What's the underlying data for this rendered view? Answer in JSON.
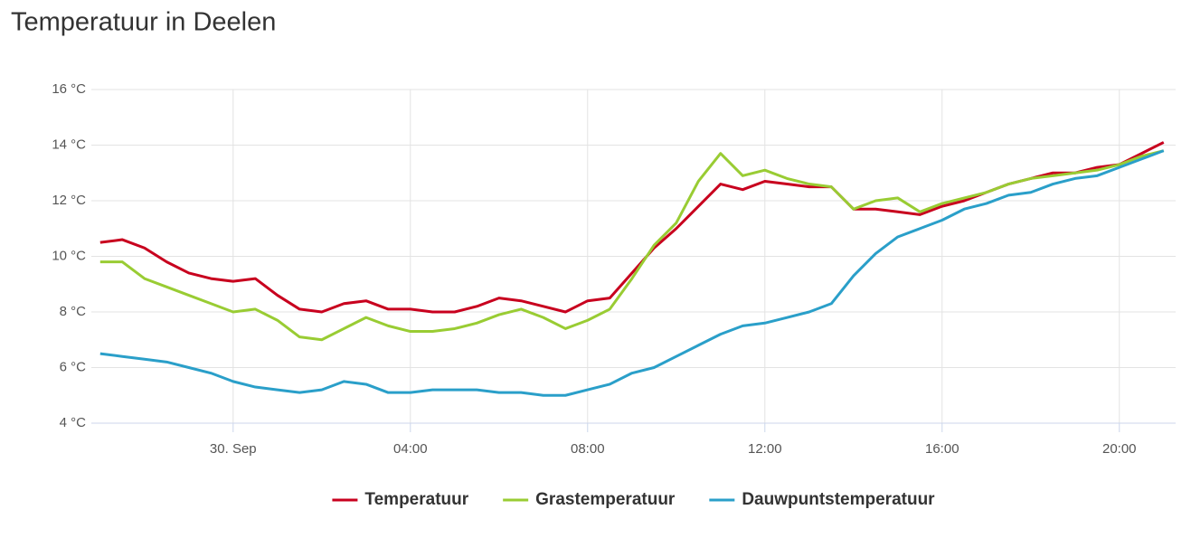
{
  "chart_data": {
    "type": "line",
    "title": "Temperatuur in Deelen",
    "x": [
      -3,
      -2.5,
      -2,
      -1.5,
      -1,
      -0.5,
      0,
      0.5,
      1,
      1.5,
      2,
      2.5,
      3,
      3.5,
      4,
      4.5,
      5,
      5.5,
      6,
      6.5,
      7,
      7.5,
      8,
      8.5,
      9,
      9.5,
      10,
      10.5,
      11,
      11.5,
      12,
      12.5,
      13,
      13.5,
      14,
      14.5,
      15,
      15.5,
      16,
      16.5,
      17,
      17.5,
      18,
      18.5,
      19,
      19.5,
      20,
      20.5,
      21
    ],
    "series": [
      {
        "name": "Temperatuur",
        "color": "#c8001e",
        "values": [
          10.5,
          10.6,
          10.3,
          9.8,
          9.4,
          9.2,
          9.1,
          9.2,
          8.6,
          8.1,
          8.0,
          8.3,
          8.4,
          8.1,
          8.1,
          8.0,
          8.0,
          8.2,
          8.5,
          8.4,
          8.2,
          8.0,
          8.4,
          8.5,
          9.4,
          10.3,
          11.0,
          11.8,
          12.6,
          12.4,
          12.7,
          12.6,
          12.5,
          12.5,
          11.7,
          11.7,
          11.6,
          11.5,
          11.8,
          12.0,
          12.3,
          12.6,
          12.8,
          13.0,
          13.0,
          13.2,
          13.3,
          13.7,
          14.1
        ]
      },
      {
        "name": "Grastemperatuur",
        "color": "#99cc33",
        "values": [
          9.8,
          9.8,
          9.2,
          8.9,
          8.6,
          8.3,
          8.0,
          8.1,
          7.7,
          7.1,
          7.0,
          7.4,
          7.8,
          7.5,
          7.3,
          7.3,
          7.4,
          7.6,
          7.9,
          8.1,
          7.8,
          7.4,
          7.7,
          8.1,
          9.2,
          10.4,
          11.2,
          12.7,
          13.7,
          12.9,
          13.1,
          12.8,
          12.6,
          12.5,
          11.7,
          12.0,
          12.1,
          11.6,
          11.9,
          12.1,
          12.3,
          12.6,
          12.8,
          12.9,
          13.0,
          13.1,
          13.3,
          13.6,
          13.8
        ]
      },
      {
        "name": "Dauwpuntstemperatuur",
        "color": "#2a9fc9",
        "values": [
          6.5,
          6.4,
          6.3,
          6.2,
          6.0,
          5.8,
          5.5,
          5.3,
          5.2,
          5.1,
          5.2,
          5.5,
          5.4,
          5.1,
          5.1,
          5.2,
          5.2,
          5.2,
          5.1,
          5.1,
          5.0,
          5.0,
          5.2,
          5.4,
          5.8,
          6.0,
          6.4,
          6.8,
          7.2,
          7.5,
          7.6,
          7.8,
          8.0,
          8.3,
          9.3,
          10.1,
          10.7,
          11.0,
          11.3,
          11.7,
          11.9,
          12.2,
          12.3,
          12.6,
          12.8,
          12.9,
          13.2,
          13.5,
          13.8
        ]
      }
    ],
    "xlim": [
      -3.2,
      21.27
    ],
    "xticks": [
      {
        "value": 0,
        "label": "30. Sep"
      },
      {
        "value": 4,
        "label": "04:00"
      },
      {
        "value": 8,
        "label": "08:00"
      },
      {
        "value": 12,
        "label": "12:00"
      },
      {
        "value": 16,
        "label": "16:00"
      },
      {
        "value": 20,
        "label": "20:00"
      }
    ],
    "ylim": [
      4,
      16
    ],
    "yticks": [
      {
        "value": 4,
        "label": "4 °C"
      },
      {
        "value": 6,
        "label": "6 °C"
      },
      {
        "value": 8,
        "label": "8 °C"
      },
      {
        "value": 10,
        "label": "10 °C"
      },
      {
        "value": 12,
        "label": "12 °C"
      },
      {
        "value": 14,
        "label": "14 °C"
      },
      {
        "value": 16,
        "label": "16 °C"
      }
    ],
    "grid": true,
    "legend": "bottom"
  }
}
